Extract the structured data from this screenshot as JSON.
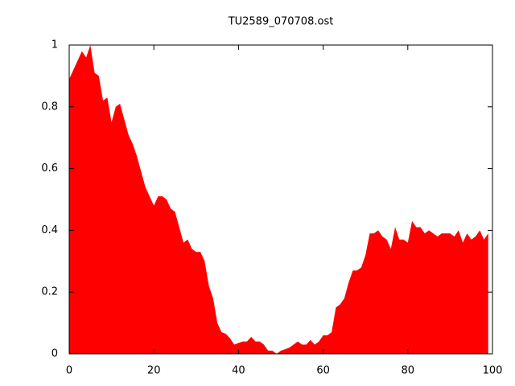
{
  "chart_data": {
    "type": "area",
    "title": "TU2589_070708.ost",
    "x": [
      0,
      1,
      2,
      3,
      4,
      5,
      6,
      7,
      8,
      9,
      10,
      11,
      12,
      13,
      14,
      15,
      16,
      17,
      18,
      19,
      20,
      21,
      22,
      23,
      24,
      25,
      26,
      27,
      28,
      29,
      30,
      31,
      32,
      33,
      34,
      35,
      36,
      37,
      38,
      39,
      40,
      41,
      42,
      43,
      44,
      45,
      46,
      47,
      48,
      49,
      50,
      51,
      52,
      53,
      54,
      55,
      56,
      57,
      58,
      59,
      60,
      61,
      62,
      63,
      64,
      65,
      66,
      67,
      68,
      69,
      70,
      71,
      72,
      73,
      74,
      75,
      76,
      77,
      78,
      79,
      80,
      81,
      82,
      83,
      84,
      85,
      86,
      87,
      88,
      89,
      90,
      91,
      92,
      93,
      94,
      95,
      96,
      97,
      98,
      99
    ],
    "series": [
      {
        "color": "#ff0000",
        "values": [
          0.89,
          0.92,
          0.95,
          0.98,
          0.96,
          1.0,
          0.91,
          0.9,
          0.82,
          0.83,
          0.75,
          0.8,
          0.81,
          0.76,
          0.71,
          0.68,
          0.64,
          0.59,
          0.54,
          0.51,
          0.48,
          0.51,
          0.51,
          0.5,
          0.47,
          0.46,
          0.41,
          0.36,
          0.37,
          0.34,
          0.33,
          0.33,
          0.3,
          0.22,
          0.18,
          0.1,
          0.07,
          0.065,
          0.05,
          0.03,
          0.035,
          0.04,
          0.04,
          0.055,
          0.04,
          0.04,
          0.03,
          0.01,
          0.01,
          0.0,
          0.01,
          0.015,
          0.02,
          0.03,
          0.04,
          0.03,
          0.03,
          0.045,
          0.03,
          0.04,
          0.06,
          0.06,
          0.07,
          0.15,
          0.16,
          0.18,
          0.23,
          0.27,
          0.27,
          0.28,
          0.32,
          0.39,
          0.39,
          0.4,
          0.38,
          0.37,
          0.34,
          0.41,
          0.37,
          0.37,
          0.36,
          0.43,
          0.41,
          0.41,
          0.39,
          0.4,
          0.39,
          0.38,
          0.39,
          0.39,
          0.39,
          0.38,
          0.4,
          0.36,
          0.39,
          0.37,
          0.38,
          0.4,
          0.37,
          0.39
        ]
      }
    ],
    "xlim": [
      0,
      100
    ],
    "xticks": [
      0,
      20,
      40,
      60,
      80,
      100
    ],
    "ylim": [
      0,
      1
    ],
    "yticks": [
      0,
      0.2,
      0.4,
      0.6,
      0.8,
      1
    ]
  }
}
